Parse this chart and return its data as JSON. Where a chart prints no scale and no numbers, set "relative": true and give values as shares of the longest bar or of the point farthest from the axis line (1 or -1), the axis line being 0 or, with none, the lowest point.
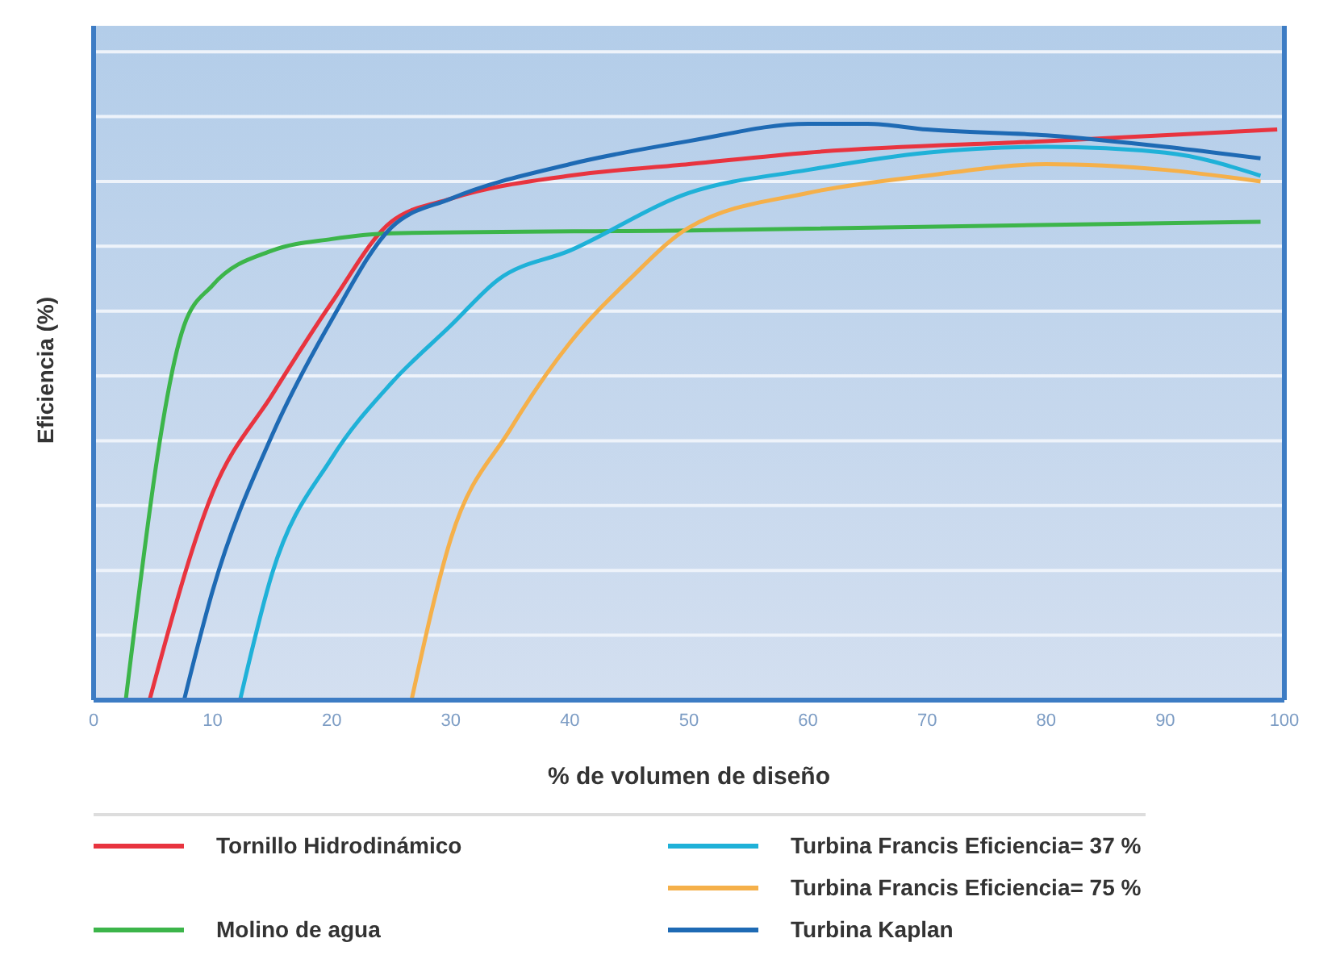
{
  "chart_data": {
    "type": "line",
    "xlabel": "% de volumen de diseño",
    "ylabel": "Eficiencia (%)",
    "relative": true,
    "xlim": [
      0,
      100
    ],
    "xticks": [
      0,
      10,
      20,
      30,
      40,
      50,
      60,
      70,
      80,
      90,
      100
    ],
    "grid": "y",
    "legend": "bottom",
    "marker": "none",
    "line_style": "solid",
    "series": [
      {
        "name": "Tornillo Hidrodinámico",
        "color": "#e8343f",
        "x": [
          4.7,
          10,
          15,
          20,
          25,
          30,
          40,
          50,
          60,
          80,
          99.4
        ],
        "values": [
          0,
          0.36,
          0.53,
          0.69,
          0.83,
          0.87,
          0.91,
          0.93,
          0.95,
          0.97,
          0.99
        ]
      },
      {
        "name": "Molino de agua",
        "color": "#3cb54a",
        "x": [
          2.7,
          7.6,
          10,
          15,
          20,
          25,
          50,
          98
        ],
        "values": [
          0,
          0.65,
          0.72,
          0.78,
          0.8,
          0.81,
          0.815,
          0.83
        ]
      },
      {
        "name": "Turbina Francis Eficiencia= 37 %",
        "color": "#1fb1d8",
        "x": [
          12.3,
          15,
          20,
          25,
          30,
          34,
          40,
          50,
          60,
          70,
          80,
          90,
          98
        ],
        "values": [
          0,
          0.22,
          0.42,
          0.55,
          0.65,
          0.73,
          0.78,
          0.88,
          0.92,
          0.95,
          0.96,
          0.95,
          0.91
        ]
      },
      {
        "name": "Turbina Francis Eficiencia= 75 %",
        "color": "#f5b04a",
        "x": [
          26.7,
          30,
          35,
          40,
          45,
          50,
          60,
          70,
          80,
          90,
          98
        ],
        "values": [
          0,
          0.28,
          0.47,
          0.62,
          0.73,
          0.82,
          0.88,
          0.91,
          0.93,
          0.92,
          0.9
        ]
      },
      {
        "name": "Turbina Kaplan",
        "color": "#1e6ab4",
        "x": [
          7.6,
          10,
          15,
          20,
          25,
          30,
          40,
          50,
          60,
          65,
          70,
          80,
          90,
          98
        ],
        "values": [
          0,
          0.19,
          0.46,
          0.66,
          0.82,
          0.87,
          0.93,
          0.97,
          1,
          1,
          0.99,
          0.98,
          0.96,
          0.94
        ]
      }
    ]
  }
}
